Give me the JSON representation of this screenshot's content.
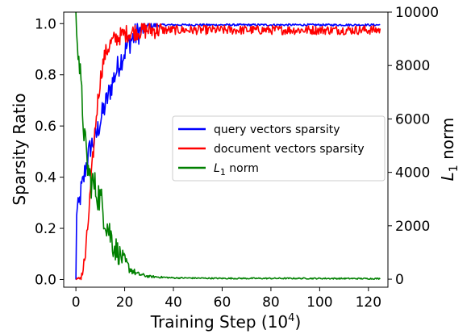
{
  "chart_data": {
    "type": "line",
    "xlabel_main": "Training Step (10",
    "xlabel_sup": "4",
    "xlabel_end": ")",
    "ylabel_left": "Sparsity Ratio",
    "ylabel_right_main": "L",
    "ylabel_right_sub": "1",
    "ylabel_right_end": " norm",
    "xlim": [
      -5,
      128
    ],
    "ylim_left": [
      -0.03,
      1.045
    ],
    "ylim_right": [
      -300,
      10000
    ],
    "x_ticks": [
      0,
      20,
      40,
      60,
      80,
      100,
      120
    ],
    "y_left_ticks": [
      "0.0",
      "0.2",
      "0.4",
      "0.6",
      "0.8",
      "1.0"
    ],
    "y_right_ticks": [
      "0",
      "2000",
      "4000",
      "6000",
      "8000",
      "10000"
    ],
    "grid": false,
    "legend_position": "center-right",
    "series": [
      {
        "name": "query vectors sparsity",
        "color": "#0000ff",
        "axis": "left",
        "noise": 0.05,
        "points": [
          [
            0,
            0.0
          ],
          [
            0.1,
            0.27
          ],
          [
            1,
            0.27
          ],
          [
            2,
            0.34
          ],
          [
            3,
            0.38
          ],
          [
            4,
            0.44
          ],
          [
            5,
            0.48
          ],
          [
            6,
            0.52
          ],
          [
            8,
            0.55
          ],
          [
            10,
            0.62
          ],
          [
            12,
            0.68
          ],
          [
            14,
            0.74
          ],
          [
            16,
            0.8
          ],
          [
            18,
            0.85
          ],
          [
            20,
            0.89
          ],
          [
            22,
            0.93
          ],
          [
            24,
            0.95
          ],
          [
            26,
            0.97
          ],
          [
            28,
            0.98
          ],
          [
            30,
            0.99
          ],
          [
            35,
            0.995
          ],
          [
            125,
            0.995
          ]
        ]
      },
      {
        "name": "document vectors sparsity",
        "color": "#ff0000",
        "axis": "left",
        "noise": 0.035,
        "points": [
          [
            0,
            0.0
          ],
          [
            1,
            0.0
          ],
          [
            2,
            0.01
          ],
          [
            3,
            0.04
          ],
          [
            4,
            0.1
          ],
          [
            5,
            0.22
          ],
          [
            6,
            0.35
          ],
          [
            7,
            0.48
          ],
          [
            8,
            0.6
          ],
          [
            9,
            0.7
          ],
          [
            10,
            0.78
          ],
          [
            11,
            0.84
          ],
          [
            12,
            0.88
          ],
          [
            14,
            0.92
          ],
          [
            16,
            0.94
          ],
          [
            20,
            0.96
          ],
          [
            25,
            0.97
          ],
          [
            30,
            0.975
          ],
          [
            125,
            0.975
          ]
        ]
      },
      {
        "name": "L1 norm",
        "legend_main": "L",
        "legend_sub": "1",
        "legend_end": " norm",
        "color": "#008000",
        "axis": "right",
        "noise": 650,
        "points": [
          [
            0,
            10000
          ],
          [
            0.5,
            9300
          ],
          [
            1,
            8700
          ],
          [
            2,
            7200
          ],
          [
            3,
            6000
          ],
          [
            4,
            4800
          ],
          [
            5,
            4100
          ],
          [
            6,
            3700
          ],
          [
            8,
            3400
          ],
          [
            10,
            3000
          ],
          [
            12,
            2300
          ],
          [
            14,
            1700
          ],
          [
            16,
            1200
          ],
          [
            18,
            900
          ],
          [
            20,
            650
          ],
          [
            22,
            400
          ],
          [
            25,
            200
          ],
          [
            30,
            100
          ],
          [
            40,
            50
          ],
          [
            60,
            30
          ],
          [
            94,
            30
          ],
          [
            125,
            20
          ]
        ]
      }
    ]
  }
}
